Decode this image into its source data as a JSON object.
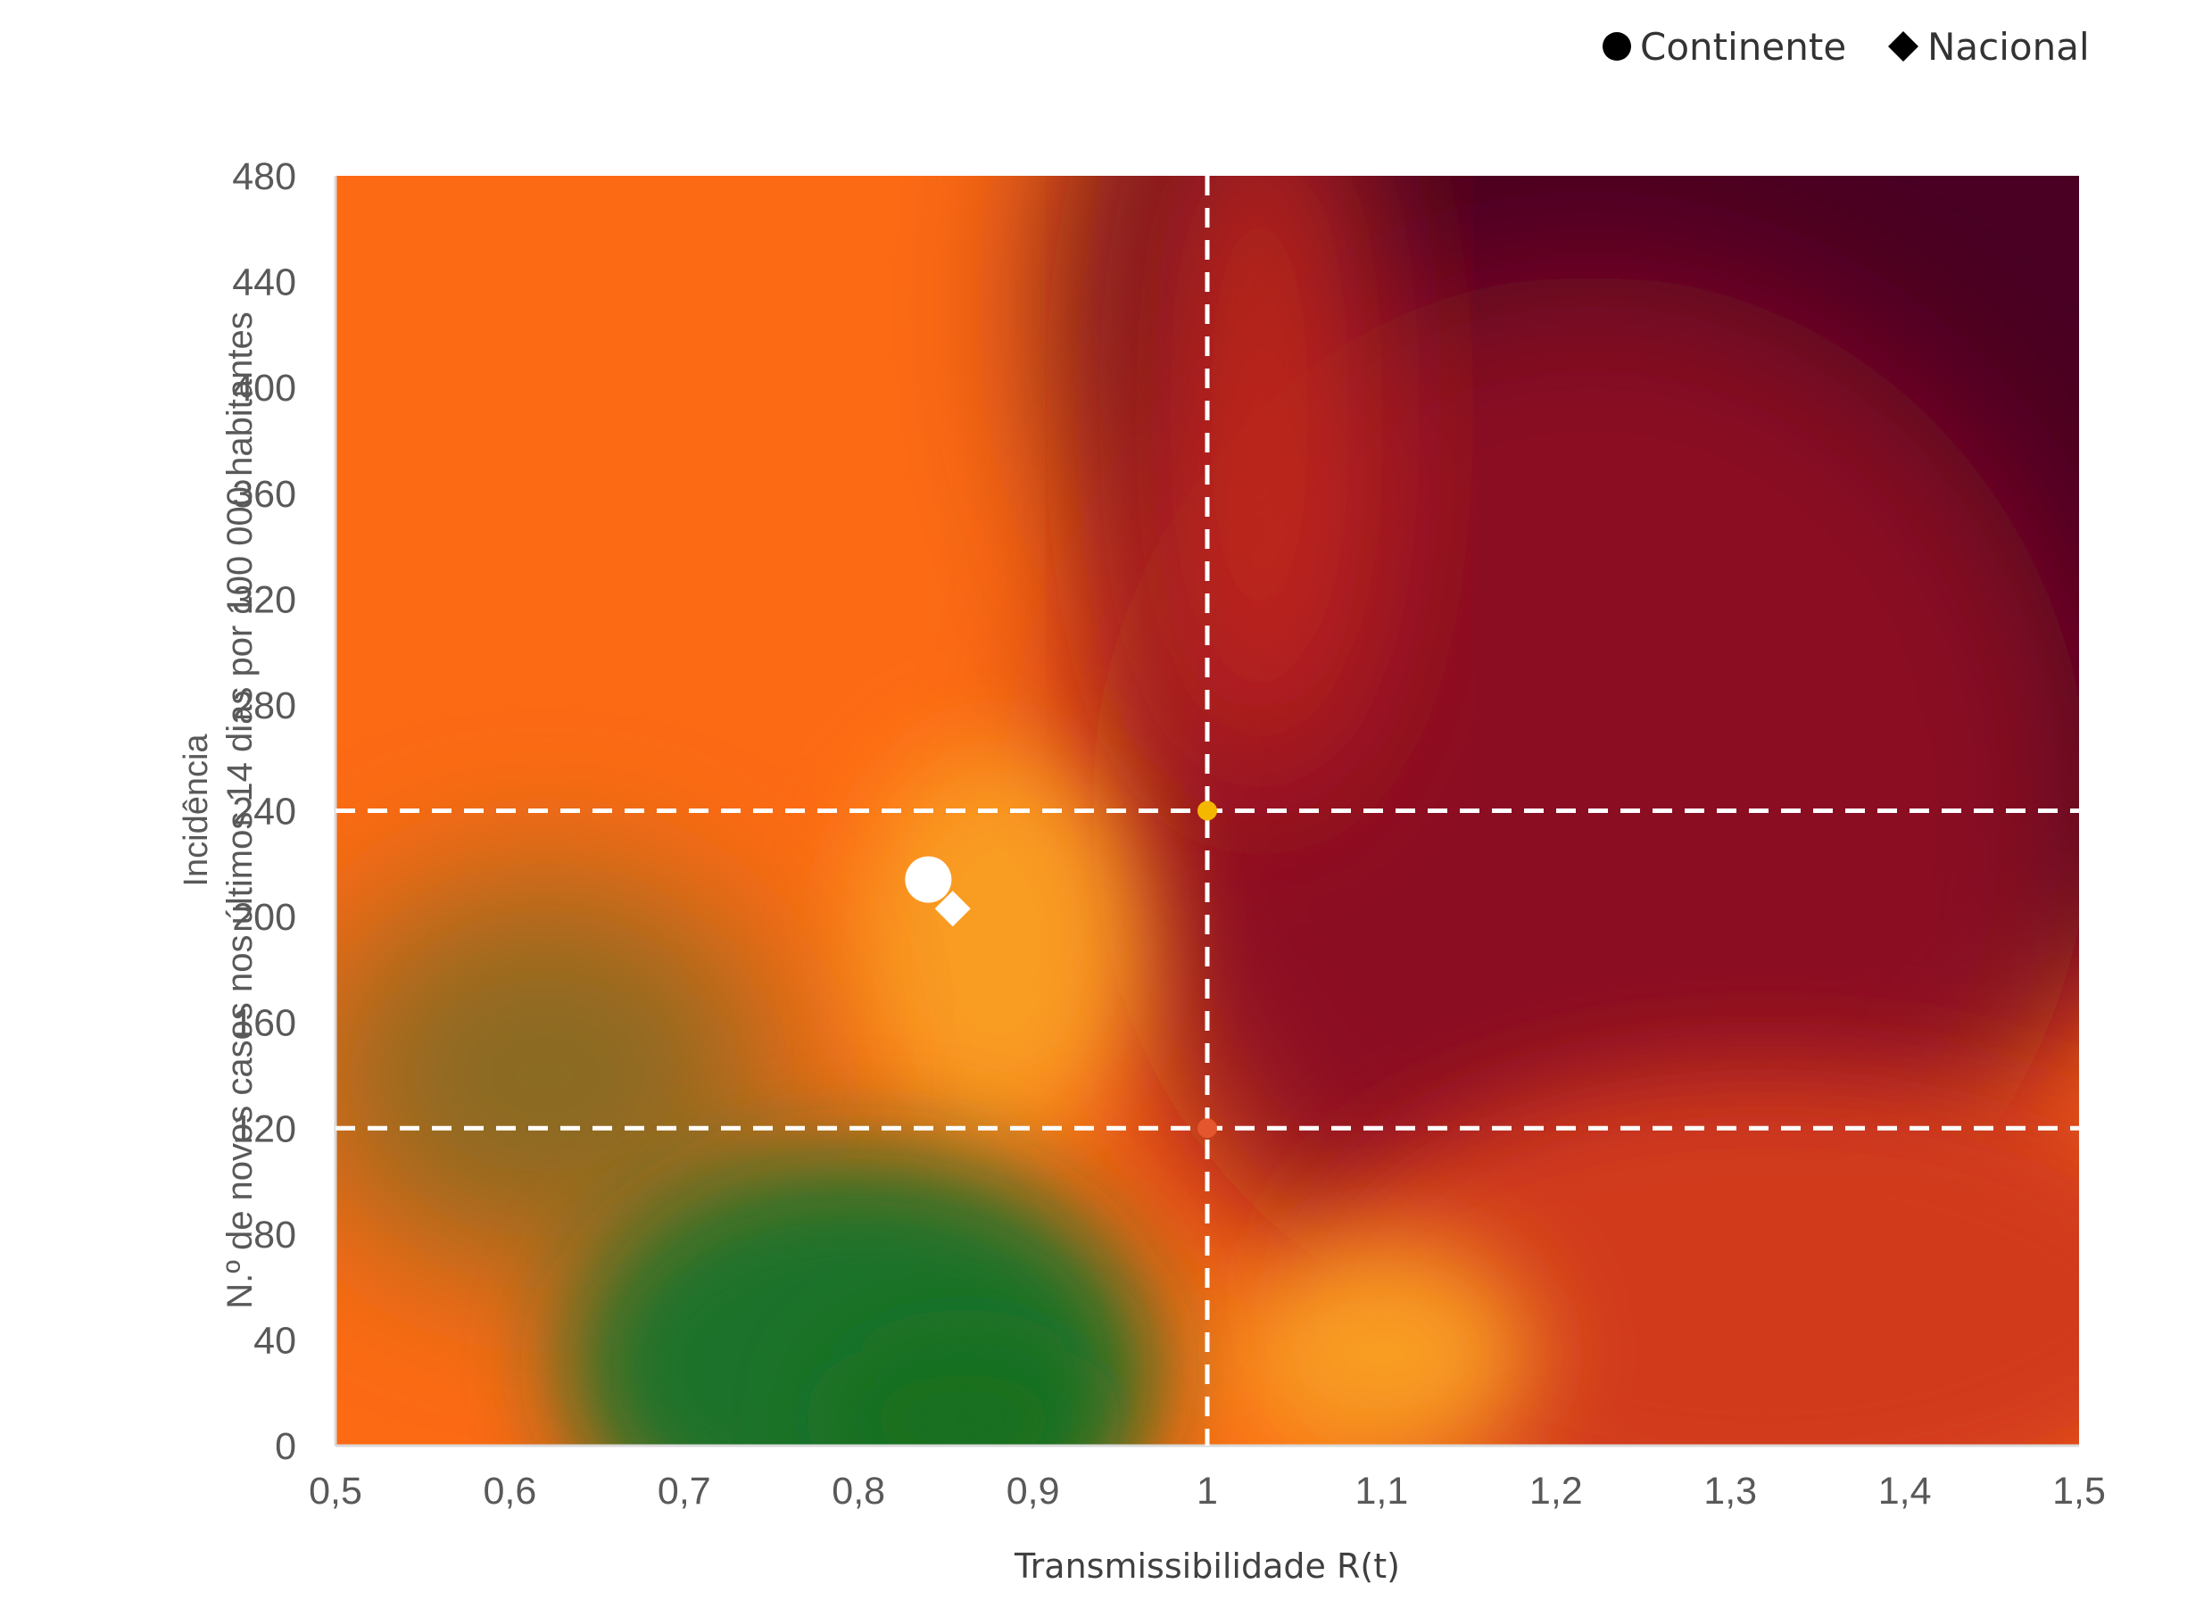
{
  "chart_data": {
    "type": "scatter",
    "xlabel": "Transmissibilidade R(t)",
    "ylabel_lines": [
      "Incidência",
      "N.º de novos casos nos últimos 14 dias por 100 000 habitantes"
    ],
    "xlim": [
      0.5,
      1.5
    ],
    "ylim": [
      0,
      480
    ],
    "x_ticks": [
      0.5,
      0.6,
      0.7,
      0.8,
      0.9,
      1.0,
      1.1,
      1.2,
      1.3,
      1.4,
      1.5
    ],
    "x_tick_labels": [
      "0,5",
      "0,6",
      "0,7",
      "0,8",
      "0,9",
      "1",
      "1,1",
      "1,2",
      "1,3",
      "1,4",
      "1,5"
    ],
    "y_ticks": [
      0,
      40,
      80,
      120,
      160,
      200,
      240,
      280,
      320,
      360,
      400,
      440,
      480
    ],
    "y_tick_labels": [
      "0",
      "40",
      "80",
      "120",
      "160",
      "200",
      "240",
      "280",
      "320",
      "360",
      "400",
      "440",
      "480"
    ],
    "reference_lines": {
      "x": [
        1.0
      ],
      "y": [
        120,
        240
      ]
    },
    "reference_markers": [
      {
        "x": 1.0,
        "y": 240,
        "color": "#f5b800"
      },
      {
        "x": 1.0,
        "y": 120,
        "color": "#e4572e"
      }
    ],
    "series": [
      {
        "name": "Continente",
        "marker": "circle",
        "color": "#ffffff",
        "points": [
          {
            "x": 0.84,
            "y": 214
          }
        ]
      },
      {
        "name": "Nacional",
        "marker": "diamond",
        "color": "#ffffff",
        "points": [
          {
            "x": 0.854,
            "y": 203
          }
        ]
      }
    ],
    "legend": {
      "position": "top-right",
      "items": [
        {
          "label": "Continente",
          "marker": "circle",
          "color": "#000000"
        },
        {
          "label": "Nacional",
          "marker": "diamond",
          "color": "#000000"
        }
      ]
    },
    "background_colors": {
      "green": "#1e7229",
      "yellow_orange": "#f99d23",
      "orange": "#fd6a14",
      "red": "#d13b1c",
      "crimson": "#8b0820",
      "dark": "#4a0020"
    },
    "grid": false
  }
}
